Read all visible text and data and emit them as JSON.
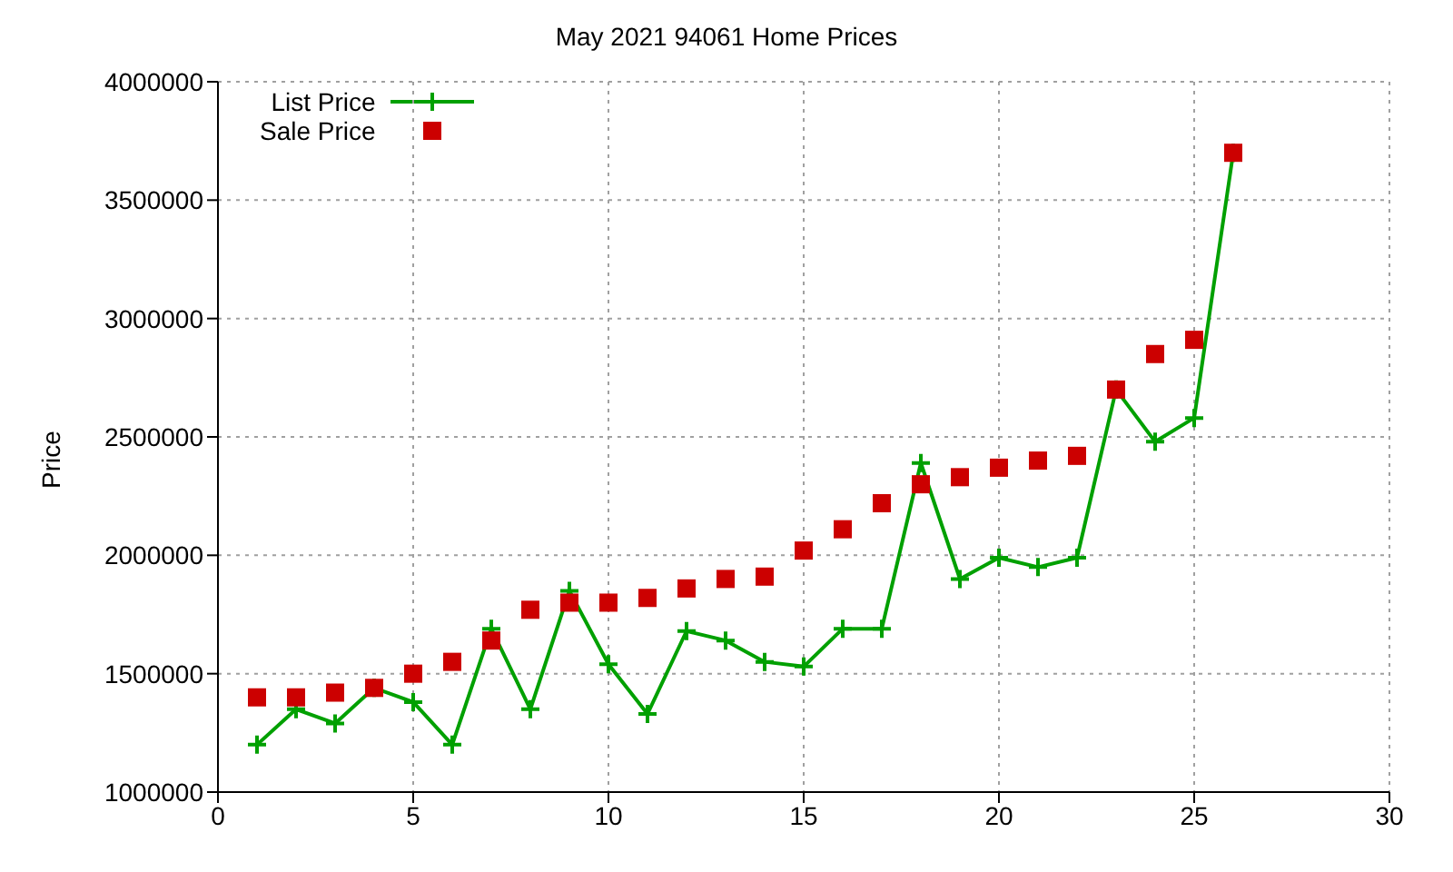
{
  "chart_data": {
    "type": "line",
    "title": "May 2021 94061 Home Prices",
    "ylabel": "Price",
    "x": [
      1,
      2,
      3,
      4,
      5,
      6,
      7,
      8,
      9,
      10,
      11,
      12,
      13,
      14,
      15,
      16,
      17,
      18,
      19,
      20,
      21,
      22,
      23,
      24,
      25,
      26
    ],
    "series": [
      {
        "name": "List Price",
        "marker": "cross",
        "color": "#00a000",
        "values": [
          1200000,
          1350000,
          1290000,
          1440000,
          1380000,
          1200000,
          1690000,
          1350000,
          1850000,
          1540000,
          1330000,
          1680000,
          1640000,
          1550000,
          1530000,
          1690000,
          1690000,
          2390000,
          1900000,
          1990000,
          1950000,
          1990000,
          2700000,
          2480000,
          2580000,
          3700000
        ]
      },
      {
        "name": "Sale Price",
        "type": "scatter",
        "marker": "square",
        "color": "#cc0000",
        "values": [
          1400000,
          1400000,
          1420000,
          1440000,
          1500000,
          1550000,
          1640000,
          1770000,
          1800000,
          1800000,
          1820000,
          1860000,
          1900000,
          1910000,
          2020000,
          2110000,
          2220000,
          2300000,
          2330000,
          2370000,
          2400000,
          2420000,
          2700000,
          2850000,
          2910000,
          3700000
        ]
      }
    ],
    "xlim": [
      0,
      30
    ],
    "xticks": [
      0,
      5,
      10,
      15,
      20,
      25,
      30
    ],
    "ylim": [
      1000000,
      4000000
    ],
    "yticks": [
      1000000,
      1500000,
      2000000,
      2500000,
      3000000,
      3500000,
      4000000
    ],
    "grid": true,
    "legend": "top left"
  }
}
